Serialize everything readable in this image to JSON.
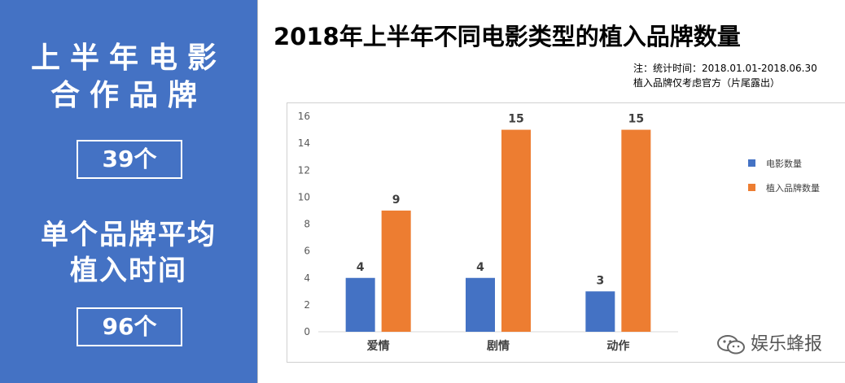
{
  "left_panel": {
    "heading1_line1": "上半年电影",
    "heading1_line2": "合作品牌",
    "stat1": "39个",
    "heading2_line1": "单个品牌平均",
    "heading2_line2": "植入时间",
    "stat2": "96个",
    "background_color": "#4472c4"
  },
  "header": {
    "title": "2018年上半年不同电影类型的植入品牌数量",
    "note_line1": "注：统计时间：2018.01.01-2018.06.30",
    "note_line2": "植入品牌仅考虑官方（片尾露出）"
  },
  "watermark": {
    "text": "娱乐蜂报",
    "icon": "wechat-icon"
  },
  "chart_data": {
    "type": "bar",
    "categories": [
      "爱情",
      "剧情",
      "动作"
    ],
    "series": [
      {
        "name": "电影数量",
        "values": [
          4,
          4,
          3
        ],
        "color": "#4472c4"
      },
      {
        "name": "植入品牌数量",
        "values": [
          9,
          15,
          15
        ],
        "color": "#ed7d31"
      }
    ],
    "ylim": [
      0,
      16
    ],
    "yticks": [
      0,
      2,
      4,
      6,
      8,
      10,
      12,
      14,
      16
    ],
    "data_labels": true,
    "grid": false,
    "legend_position": "right"
  }
}
